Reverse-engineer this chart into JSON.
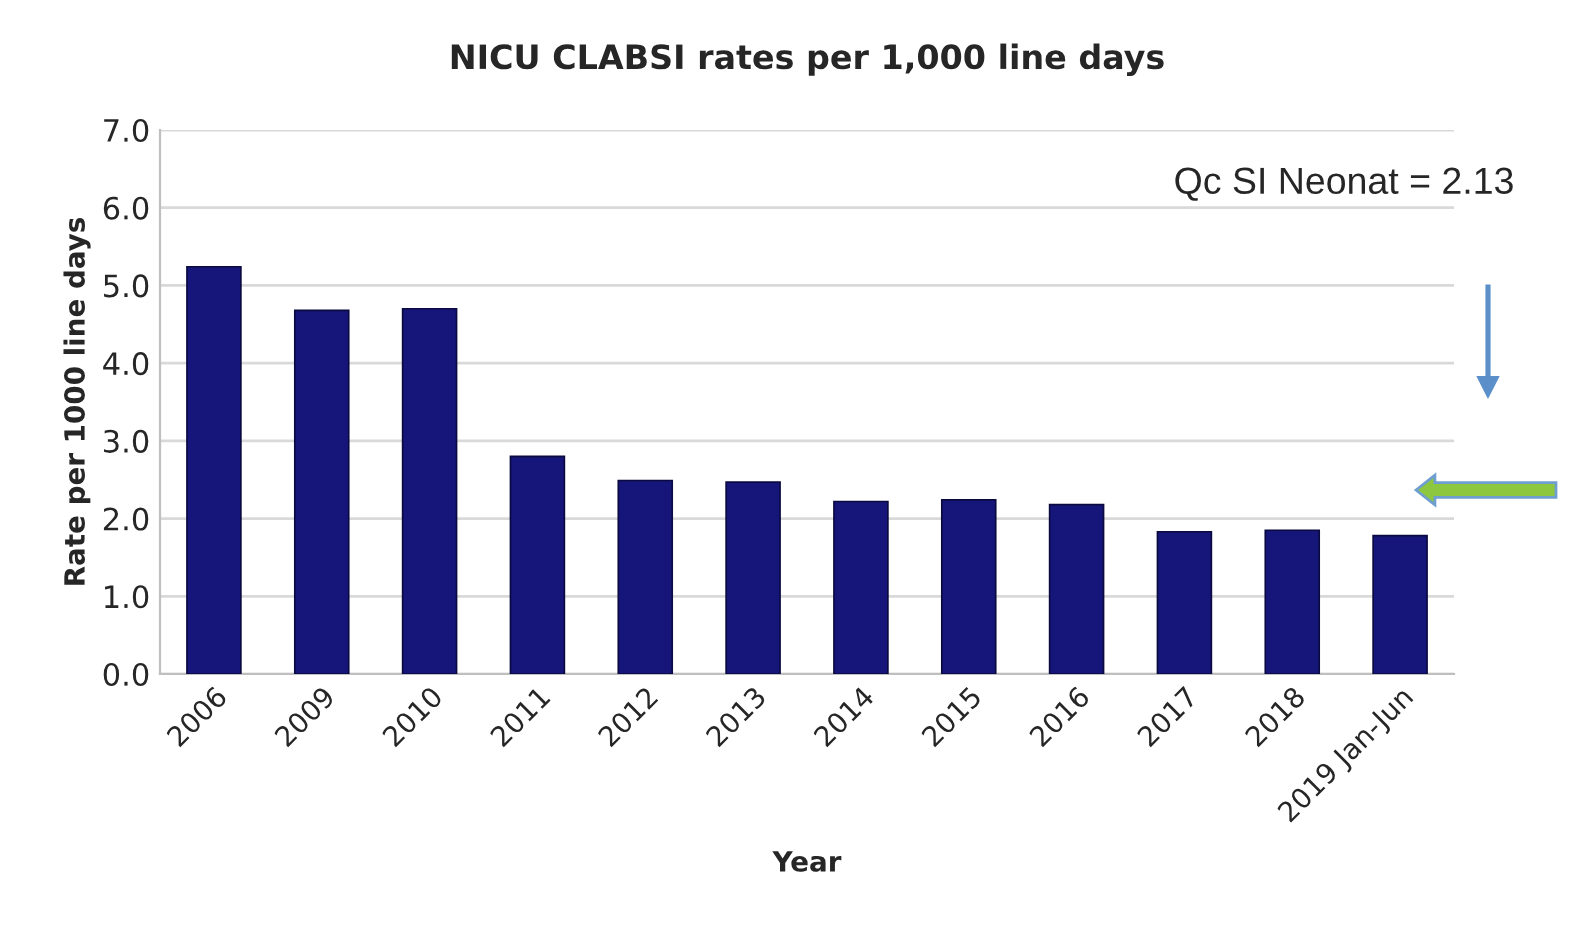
{
  "chart_data": {
    "type": "bar",
    "title": "NICU CLABSI rates per 1,000 line days",
    "xlabel": "Year",
    "ylabel": "Rate per 1000 line days",
    "categories": [
      "2006",
      "2009",
      "2010",
      "2011",
      "2012",
      "2013",
      "2014",
      "2015",
      "2016",
      "2017",
      "2018",
      "2019 Jan-Jun"
    ],
    "values": [
      5.24,
      4.68,
      4.7,
      2.8,
      2.49,
      2.47,
      2.22,
      2.24,
      2.18,
      1.83,
      1.85,
      1.78
    ],
    "color": "#16167a",
    "ylim": [
      0,
      7
    ],
    "yticks": [
      {
        "value": 0,
        "label": "0.0"
      },
      {
        "value": 1,
        "label": "1.0"
      },
      {
        "value": 2,
        "label": "2.0"
      },
      {
        "value": 3,
        "label": "3.0"
      },
      {
        "value": 4,
        "label": "4.0"
      },
      {
        "value": 5,
        "label": "5.0"
      },
      {
        "value": 6,
        "label": "6.0"
      },
      {
        "value": 7,
        "label": "7.0"
      }
    ],
    "grid": "y",
    "annotations": [
      "Qc SI Neonat = 2.13"
    ]
  }
}
